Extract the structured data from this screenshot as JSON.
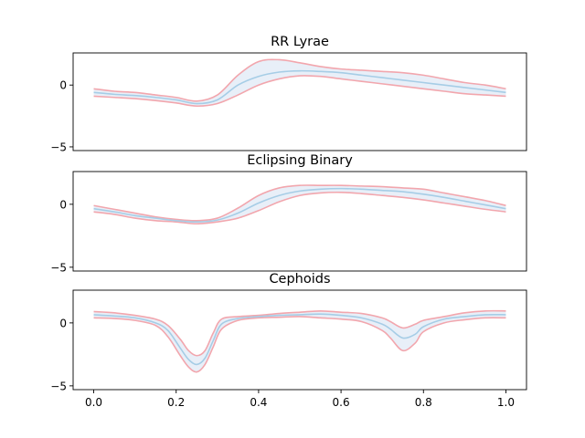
{
  "chart_data": [
    {
      "type": "line",
      "title": "RR Lyrae",
      "xlim": [
        -0.05,
        1.05
      ],
      "ylim": [
        -5.3,
        2.6
      ],
      "yticks": [
        0,
        -5
      ],
      "ytick_labels": [
        "0",
        "−5"
      ],
      "grid": false,
      "colors": {
        "mean": "#a6cde6",
        "band": "#f2a6ad",
        "fill": "#e8eff8"
      },
      "x": [
        0.0,
        0.05,
        0.1,
        0.15,
        0.2,
        0.25,
        0.3,
        0.35,
        0.4,
        0.45,
        0.5,
        0.55,
        0.6,
        0.65,
        0.7,
        0.75,
        0.8,
        0.85,
        0.9,
        0.95,
        1.0
      ],
      "series": [
        {
          "role": "upper",
          "values": [
            -0.3,
            -0.5,
            -0.6,
            -0.8,
            -1.0,
            -1.3,
            -0.8,
            0.8,
            1.9,
            2.05,
            1.8,
            1.5,
            1.3,
            1.2,
            1.1,
            1.0,
            0.8,
            0.5,
            0.2,
            0.0,
            -0.3
          ]
        },
        {
          "role": "mean",
          "values": [
            -0.6,
            -0.75,
            -0.85,
            -1.0,
            -1.2,
            -1.5,
            -1.2,
            0.0,
            0.7,
            1.05,
            1.15,
            1.1,
            1.0,
            0.8,
            0.6,
            0.4,
            0.2,
            0.0,
            -0.2,
            -0.4,
            -0.6
          ]
        },
        {
          "role": "lower",
          "values": [
            -0.9,
            -1.0,
            -1.1,
            -1.25,
            -1.45,
            -1.7,
            -1.5,
            -0.8,
            0.0,
            0.5,
            0.75,
            0.7,
            0.5,
            0.3,
            0.1,
            -0.1,
            -0.3,
            -0.5,
            -0.7,
            -0.8,
            -0.9
          ]
        }
      ]
    },
    {
      "type": "line",
      "title": "Eclipsing Binary",
      "xlim": [
        -0.05,
        1.05
      ],
      "ylim": [
        -5.3,
        2.6
      ],
      "yticks": [
        0,
        -5
      ],
      "ytick_labels": [
        "0",
        "−5"
      ],
      "grid": false,
      "colors": {
        "mean": "#a6cde6",
        "band": "#f2a6ad",
        "fill": "#e8eff8"
      },
      "x": [
        0.0,
        0.05,
        0.1,
        0.15,
        0.2,
        0.25,
        0.3,
        0.35,
        0.4,
        0.45,
        0.5,
        0.55,
        0.6,
        0.65,
        0.7,
        0.75,
        0.8,
        0.85,
        0.9,
        0.95,
        1.0
      ],
      "series": [
        {
          "role": "upper",
          "values": [
            -0.1,
            -0.4,
            -0.7,
            -1.0,
            -1.2,
            -1.3,
            -1.1,
            -0.3,
            0.7,
            1.3,
            1.5,
            1.5,
            1.5,
            1.45,
            1.4,
            1.3,
            1.2,
            0.9,
            0.6,
            0.3,
            -0.1
          ]
        },
        {
          "role": "mean",
          "values": [
            -0.35,
            -0.6,
            -0.9,
            -1.1,
            -1.3,
            -1.4,
            -1.25,
            -0.7,
            0.1,
            0.7,
            1.05,
            1.2,
            1.25,
            1.2,
            1.1,
            1.0,
            0.8,
            0.55,
            0.25,
            -0.05,
            -0.35
          ]
        },
        {
          "role": "lower",
          "values": [
            -0.6,
            -0.8,
            -1.1,
            -1.3,
            -1.4,
            -1.55,
            -1.4,
            -1.1,
            -0.5,
            0.2,
            0.7,
            0.9,
            0.95,
            0.85,
            0.7,
            0.55,
            0.35,
            0.1,
            -0.15,
            -0.4,
            -0.6
          ]
        }
      ]
    },
    {
      "type": "line",
      "title": "Cephoids",
      "xlim": [
        -0.05,
        1.05
      ],
      "ylim": [
        -5.3,
        2.6
      ],
      "yticks": [
        0,
        -5
      ],
      "ytick_labels": [
        "0",
        "−5"
      ],
      "xticks": [
        0.0,
        0.2,
        0.4,
        0.6,
        0.8,
        1.0
      ],
      "xtick_labels": [
        "0.0",
        "0.2",
        "0.4",
        "0.6",
        "0.8",
        "1.0"
      ],
      "grid": false,
      "colors": {
        "mean": "#a6cde6",
        "band": "#f2a6ad",
        "fill": "#e8eff8"
      },
      "x": [
        0.0,
        0.05,
        0.1,
        0.15,
        0.18,
        0.21,
        0.23,
        0.25,
        0.27,
        0.29,
        0.31,
        0.35,
        0.4,
        0.45,
        0.5,
        0.55,
        0.6,
        0.65,
        0.7,
        0.72,
        0.75,
        0.78,
        0.8,
        0.85,
        0.9,
        0.95,
        1.0
      ],
      "series": [
        {
          "role": "upper",
          "values": [
            0.9,
            0.8,
            0.6,
            0.3,
            -0.2,
            -1.3,
            -2.2,
            -2.6,
            -2.2,
            -0.8,
            0.3,
            0.5,
            0.6,
            0.75,
            0.85,
            0.95,
            0.85,
            0.75,
            0.4,
            0.1,
            -0.4,
            -0.1,
            0.2,
            0.5,
            0.8,
            0.95,
            0.95
          ]
        },
        {
          "role": "mean",
          "values": [
            0.65,
            0.55,
            0.4,
            0.0,
            -0.6,
            -2.0,
            -2.9,
            -3.3,
            -2.8,
            -1.4,
            -0.1,
            0.35,
            0.5,
            0.6,
            0.65,
            0.7,
            0.6,
            0.4,
            -0.1,
            -0.5,
            -1.2,
            -0.9,
            -0.3,
            0.3,
            0.5,
            0.65,
            0.65
          ]
        },
        {
          "role": "lower",
          "values": [
            0.4,
            0.35,
            0.2,
            -0.2,
            -1.1,
            -2.6,
            -3.5,
            -3.9,
            -3.3,
            -1.9,
            -0.5,
            0.2,
            0.4,
            0.45,
            0.5,
            0.4,
            0.3,
            0.1,
            -0.6,
            -1.2,
            -2.2,
            -1.6,
            -0.7,
            0.0,
            0.25,
            0.4,
            0.4
          ]
        }
      ]
    }
  ]
}
